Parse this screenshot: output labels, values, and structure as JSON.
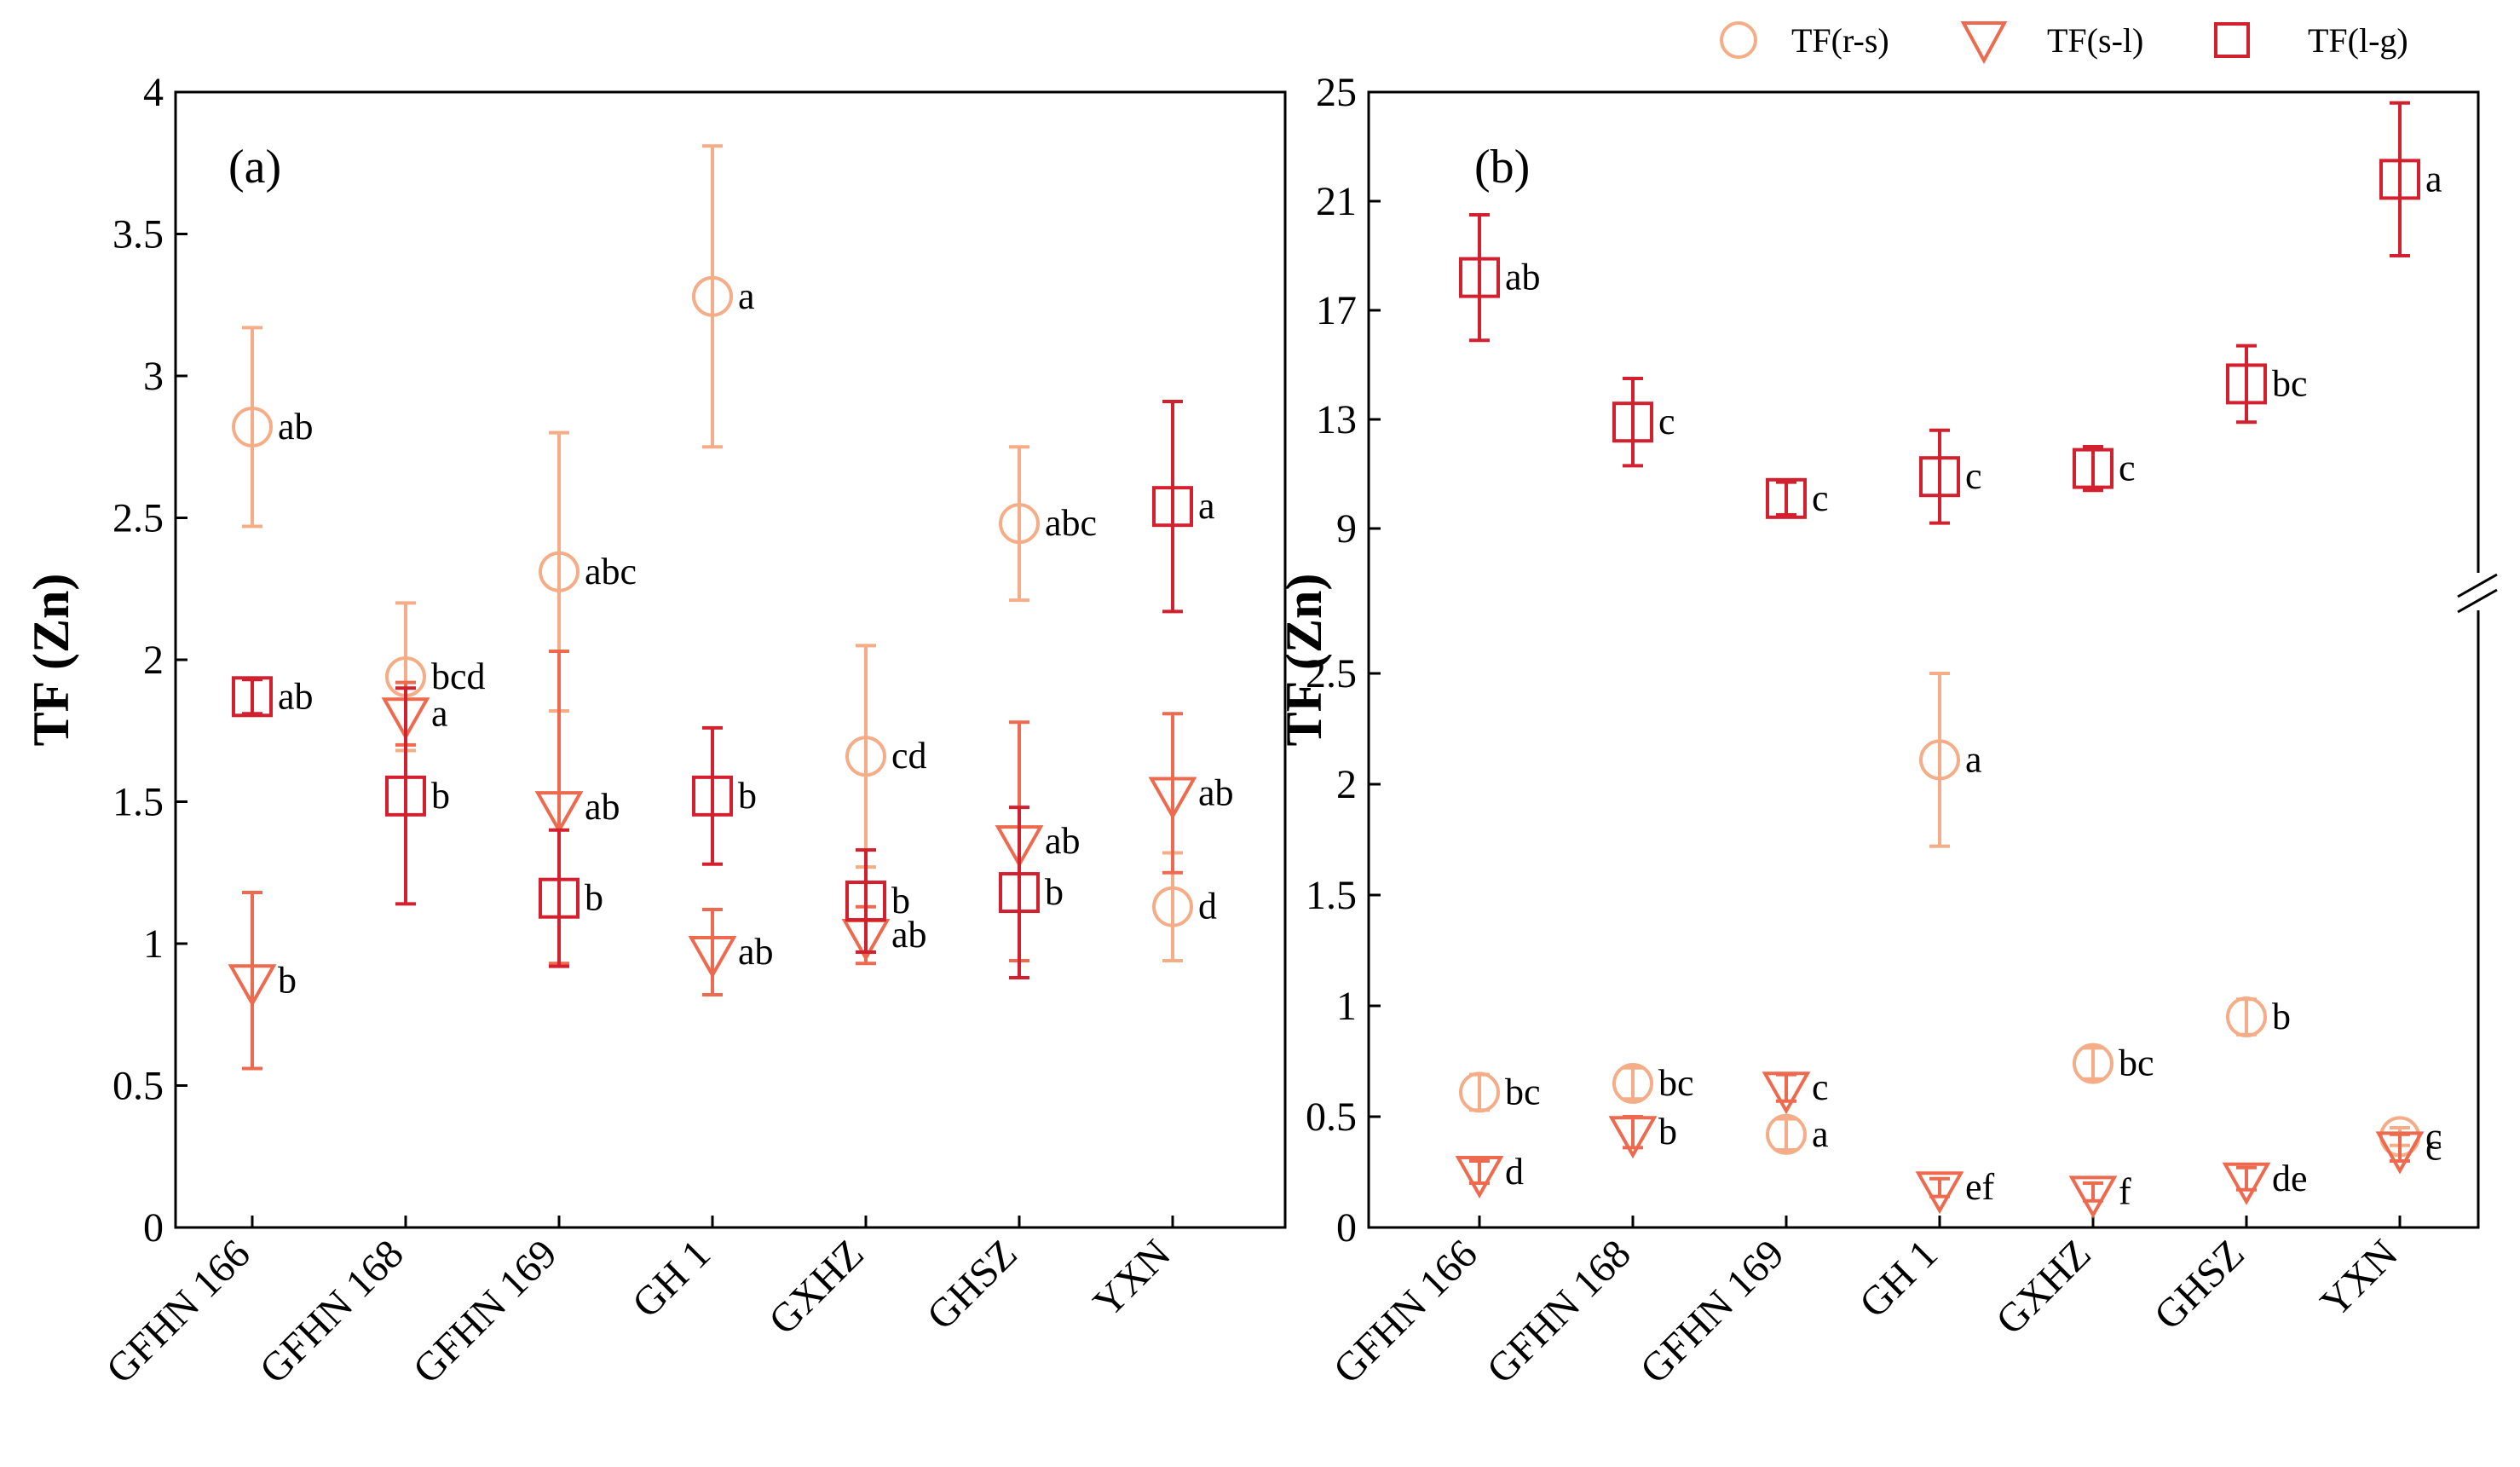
{
  "colors": {
    "rs": "#F5AD88",
    "sl": "#EE6A4E",
    "lg": "#D2202E",
    "axis": "#000000"
  },
  "legend": {
    "rs": "TF(r-s)",
    "sl": "TF(s-l)",
    "lg": "TF(l-g)"
  },
  "chart_data": [
    {
      "type": "scatter",
      "panel": "(a)",
      "ylabel": "TF (Zn)",
      "categories": [
        "GFHN 166",
        "GFHN 168",
        "GFHN 169",
        "GH 1",
        "GXHZ",
        "GHSZ",
        "YXN"
      ],
      "ylim": [
        0,
        4
      ],
      "yticks": [
        "0",
        "0.5",
        "1",
        "1.5",
        "2",
        "2.5",
        "3",
        "3.5",
        "4"
      ],
      "series": [
        {
          "name": "TF(r-s)",
          "marker": "circle",
          "color": "#F5AD88",
          "values": [
            2.82,
            1.94,
            2.31,
            3.28,
            1.66,
            2.48,
            1.13
          ],
          "errors": [
            0.35,
            0.26,
            0.49,
            0.53,
            0.39,
            0.27,
            0.19
          ],
          "letters": [
            "ab",
            "bcd",
            "abc",
            "a",
            "cd",
            "abc",
            "d"
          ]
        },
        {
          "name": "TF(s-l)",
          "marker": "triangle-down",
          "color": "#EE6A4E",
          "values": [
            0.87,
            1.81,
            1.48,
            0.97,
            1.03,
            1.36,
            1.53
          ],
          "errors": [
            0.31,
            0.11,
            0.55,
            0.15,
            0.1,
            0.42,
            0.28
          ],
          "letters": [
            "b",
            "a",
            "ab",
            "ab",
            "ab",
            "ab",
            "ab"
          ]
        },
        {
          "name": "TF(l-g)",
          "marker": "square",
          "color": "#D2202E",
          "values": [
            1.87,
            1.52,
            1.16,
            1.52,
            1.15,
            1.18,
            2.54
          ],
          "errors": [
            0.06,
            0.38,
            0.24,
            0.24,
            0.18,
            0.3,
            0.37
          ],
          "letters": [
            "ab",
            "b",
            "b",
            "b",
            "b",
            "b",
            "a"
          ]
        }
      ]
    },
    {
      "type": "scatter",
      "panel": "(b)",
      "ylabel": "TF (Zn)",
      "categories": [
        "GFHN 166",
        "GFHN 168",
        "GFHN 169",
        "GH 1",
        "GXHZ",
        "GHSZ",
        "YXN"
      ],
      "broken_axis": true,
      "lower_ylim": [
        0,
        2.75
      ],
      "upper_ylim": [
        7.5,
        25
      ],
      "lower_yticks": [
        "0",
        "0.5",
        "1",
        "1.5",
        "2",
        "2.5"
      ],
      "upper_yticks": [
        "9",
        "13",
        "17",
        "21",
        "25"
      ],
      "series": [
        {
          "name": "TF(r-s)",
          "marker": "circle",
          "color": "#F5AD88",
          "values": [
            0.61,
            0.65,
            0.42,
            2.11,
            0.74,
            0.95,
            0.41
          ],
          "errors": [
            0.08,
            0.07,
            0.07,
            0.39,
            0.07,
            0.08,
            0.04
          ],
          "letters": [
            "bc",
            "bc",
            "a",
            "a",
            "bc",
            "b",
            "c"
          ]
        },
        {
          "name": "TF(s-l)",
          "marker": "triangle-down",
          "color": "#EE6A4E",
          "values": [
            0.25,
            0.43,
            0.63,
            0.18,
            0.16,
            0.22,
            0.36
          ],
          "errors": [
            0.05,
            0.07,
            0.06,
            0.04,
            0.04,
            0.05,
            0.06
          ],
          "letters": [
            "d",
            "b",
            "c",
            "ef",
            "f",
            "de",
            "c"
          ]
        },
        {
          "name": "TF(l-g)",
          "marker": "square",
          "color": "#D2202E",
          "values": [
            18.2,
            12.9,
            10.1,
            10.9,
            11.2,
            14.3,
            21.8
          ],
          "errors": [
            2.3,
            1.6,
            0.6,
            1.7,
            0.8,
            1.4,
            2.8
          ],
          "letters": [
            "ab",
            "c",
            "c",
            "c",
            "c",
            "bc",
            "a"
          ]
        }
      ]
    }
  ]
}
